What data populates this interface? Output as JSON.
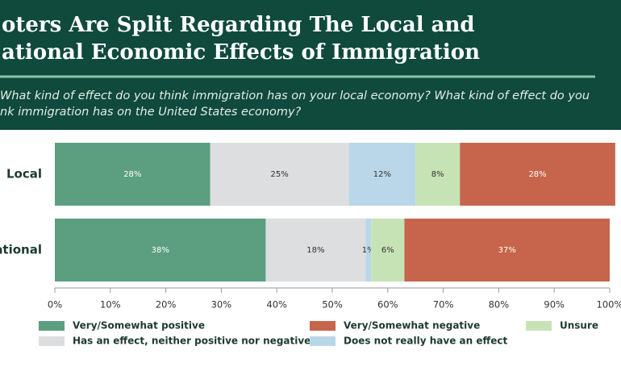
{
  "chart_data": {
    "type": "stacked-hbar",
    "title": [
      "oters Are Split Regarding The Local and",
      "ational Economic Effects of Immigration"
    ],
    "subtitle": [
      "What kind of effect do you think immigration has on your local economy? What kind of effect do you",
      "nk immigration has on the United States economy?"
    ],
    "categories": [
      "Local",
      "ational"
    ],
    "series": [
      {
        "name": "Very/Somewhat positive",
        "color": "#5c9e80",
        "values": [
          28,
          38
        ],
        "value_labels": [
          "28%",
          "38%"
        ]
      },
      {
        "name": "Has an effect, neither positive nor negative",
        "color": "#dcdedf",
        "values": [
          25,
          18
        ],
        "value_labels": [
          "25%",
          "18%"
        ]
      },
      {
        "name": "Does not really have an effect",
        "color": "#b9d7e8",
        "values": [
          12,
          1
        ],
        "value_labels": [
          "12%",
          "1%"
        ]
      },
      {
        "name": "Unsure",
        "color": "#c6e3b5",
        "values": [
          8,
          6
        ],
        "value_labels": [
          "8%",
          "6%"
        ]
      },
      {
        "name": "Very/Somewhat negative",
        "color": "#c6654b",
        "values": [
          28,
          37
        ],
        "value_labels": [
          "28%",
          "37%"
        ]
      }
    ],
    "xlim": [
      0,
      100
    ],
    "xticks": [
      {
        "value": 0,
        "label": "0%"
      },
      {
        "value": 10,
        "label": "10%"
      },
      {
        "value": 20,
        "label": "20%"
      },
      {
        "value": 30,
        "label": "30%"
      },
      {
        "value": 40,
        "label": "40%"
      },
      {
        "value": 50,
        "label": "50%"
      },
      {
        "value": 60,
        "label": "60%"
      },
      {
        "value": 70,
        "label": "70%"
      },
      {
        "value": 80,
        "label": "80%"
      },
      {
        "value": 90,
        "label": "90%"
      },
      {
        "value": 100,
        "label": "100%"
      }
    ]
  }
}
